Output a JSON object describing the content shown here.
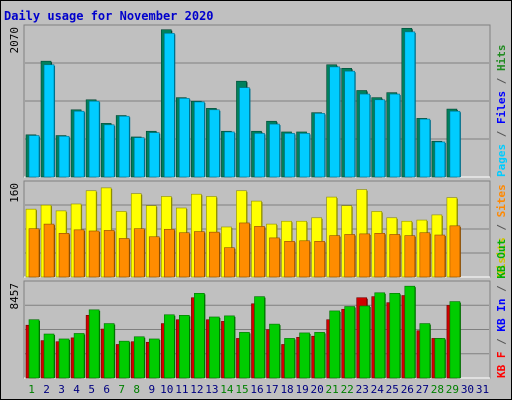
{
  "chart_data": {
    "type": "bar",
    "title": "Daily usage for November 2020",
    "days": [
      "1",
      "2",
      "3",
      "4",
      "5",
      "6",
      "7",
      "8",
      "9",
      "10",
      "11",
      "12",
      "13",
      "14",
      "15",
      "16",
      "17",
      "18",
      "19",
      "20",
      "21",
      "22",
      "23",
      "24",
      "25",
      "26",
      "27",
      "28",
      "29",
      "30",
      "31"
    ],
    "weekend_days": [
      "1",
      "7",
      "8",
      "14",
      "15",
      "21",
      "22",
      "28",
      "29"
    ],
    "panels": [
      {
        "id": "hits",
        "max_label": "2070",
        "ylim": [
          0,
          2070
        ],
        "legend": [
          {
            "text": "Pages",
            "color": "#00ccff"
          },
          {
            "text": " / ",
            "color": "#555555"
          },
          {
            "text": "Files",
            "color": "#0000ff"
          },
          {
            "text": " / ",
            "color": "#555555"
          },
          {
            "text": "Hits",
            "color": "#228b22"
          }
        ],
        "series": [
          {
            "name": "Hits",
            "color": "#00805c",
            "values": [
              590,
              1620,
              580,
              940,
              1080,
              750,
              860,
              560,
              640,
              2060,
              1110,
              1060,
              960,
              640,
              1340,
              640,
              780,
              630,
              630,
              900,
              1570,
              1520,
              1210,
              1110,
              1180,
              2080,
              820,
              500,
              950,
              null,
              null
            ]
          },
          {
            "name": "Pages",
            "color": "#00ccff",
            "values": [
              580,
              1570,
              570,
              920,
              1060,
              730,
              850,
              550,
              620,
              2010,
              1100,
              1050,
              940,
              630,
              1250,
              610,
              740,
              610,
              610,
              890,
              1540,
              1480,
              1160,
              1080,
              1160,
              2030,
              810,
              490,
              920,
              null,
              null
            ]
          }
        ]
      },
      {
        "id": "visits",
        "max_label": "160",
        "ylim": [
          0,
          160
        ],
        "legend": [
          {
            "text": "Visits",
            "color": "#d4c400"
          },
          {
            "text": " / ",
            "color": "#555555"
          },
          {
            "text": "Sites",
            "color": "#ff8800"
          }
        ],
        "series": [
          {
            "name": "Visits",
            "color": "#ffff00",
            "values": [
              118,
              125,
              115,
              127,
              150,
              155,
              114,
              145,
              124,
              140,
              120,
              144,
              140,
              87,
              150,
              132,
              92,
              97,
              97,
              103,
              139,
              124,
              152,
              114,
              103,
              97,
              99,
              108,
              138,
              null,
              null
            ]
          },
          {
            "name": "Sites",
            "color": "#ff8c00",
            "values": [
              84,
              92,
              76,
              82,
              80,
              81,
              67,
              84,
              70,
              83,
              77,
              79,
              78,
              51,
              94,
              88,
              68,
              62,
              63,
              62,
              72,
              74,
              75,
              76,
              74,
              72,
              77,
              73,
              89,
              null,
              null
            ]
          }
        ]
      },
      {
        "id": "kb",
        "max_label": "8457",
        "ylim": [
          0,
          8457
        ],
        "legend": [
          {
            "text": "KB F",
            "color": "#ff0000"
          },
          {
            "text": " / ",
            "color": "#555555"
          },
          {
            "text": "KB In",
            "color": "#0000ff"
          },
          {
            "text": " / ",
            "color": "#555555"
          },
          {
            "text": "KB Out",
            "color": "#00b000"
          }
        ],
        "series": [
          {
            "name": "KB F",
            "color": "#d00000",
            "values": [
              4800,
              3400,
              3300,
              3650,
              5700,
              4450,
              3050,
              3300,
              3250,
              4950,
              5300,
              7300,
              5300,
              5150,
              3600,
              6750,
              4400,
              3050,
              3700,
              3800,
              5300,
              6250,
              7300,
              7400,
              6850,
              7500,
              4300,
              3600,
              6600,
              null,
              null
            ]
          },
          {
            "name": "KB Out",
            "color": "#00cc00",
            "values": [
              5300,
              4000,
              3550,
              4050,
              6200,
              4950,
              3350,
              3750,
              3550,
              5750,
              5700,
              7700,
              5550,
              5650,
              4150,
              7400,
              4900,
              3600,
              4100,
              4150,
              6100,
              6500,
              6550,
              7750,
              7700,
              8350,
              4950,
              3600,
              6950,
              null,
              null
            ]
          }
        ]
      }
    ]
  }
}
